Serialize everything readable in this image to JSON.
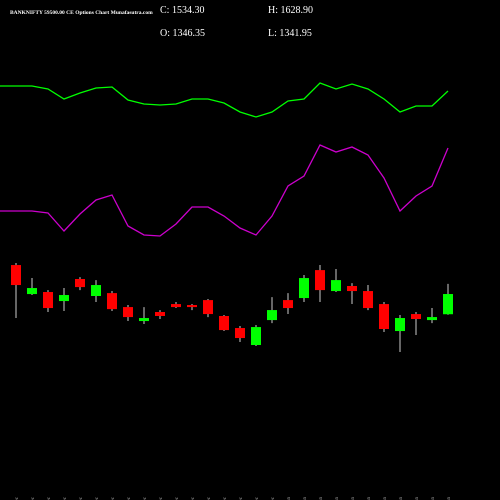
{
  "chart_data": {
    "type": "candlestick",
    "title": "BANKNIFTY 59500.00 CE Options Chart Munafasutra.com",
    "stats": [
      "C: 1534.30",
      "H: 1628.90",
      "O: 1346.35",
      "L: 1341.95"
    ],
    "up_color": "#00ff00",
    "down_color": "#ff0000",
    "categories": [
      "08 Dec",
      "09 Dec",
      "10 Dec",
      "11 Dec",
      "12 Dec",
      "15 Dec",
      "16 Dec",
      "17 Dec",
      "18 Dec",
      "19 Dec",
      "22 Dec",
      "23 Dec",
      "24 Dec",
      "26 Dec",
      "29 Dec",
      "30 Dec",
      "31 Dec",
      "01 Jan",
      "02 Jan",
      "05 Jan",
      "06 Jan",
      "07 Jan",
      "08 Jan",
      "09 Jan",
      "12 Jan",
      "13 Jan",
      "14 Jan",
      "16 Jan"
    ],
    "open": [
      1804,
      1534,
      1553,
      1469,
      1674,
      1516,
      1543,
      1413,
      1283,
      1367,
      1441,
      1432,
      1478,
      1330,
      1218,
      1060,
      1292,
      1478,
      1497,
      1757,
      1562,
      1609,
      1562,
      1441,
      1190,
      1348,
      1292,
      1346.35
    ],
    "close": [
      1618,
      1590,
      1404,
      1525,
      1599,
      1618,
      1394,
      1320,
      1311,
      1330,
      1413,
      1413,
      1348,
      1199,
      1125,
      1227,
      1385,
      1404,
      1683,
      1571,
      1664,
      1562,
      1404,
      1209,
      1311,
      1302,
      1320,
      1534.3
    ],
    "high": [
      1823,
      1683,
      1571,
      1590,
      1692,
      1664,
      1562,
      1432,
      1413,
      1385,
      1460,
      1441,
      1488,
      1339,
      1237,
      1246,
      1506,
      1543,
      1711,
      1804,
      1767,
      1636,
      1618,
      1460,
      1339,
      1367,
      1404,
      1628.9
    ],
    "low": [
      1311,
      1525,
      1367,
      1376,
      1571,
      1460,
      1376,
      1283,
      1255,
      1302,
      1404,
      1385,
      1320,
      1190,
      1088,
      1051,
      1264,
      1348,
      1460,
      1460,
      1553,
      1441,
      1385,
      1181,
      995,
      1153,
      1264,
      1341.95
    ],
    "indicators": [
      {
        "color": "#00ff00",
        "values": [
          114,
          114,
          111,
          101,
          107,
          112,
          113,
          100,
          96,
          95,
          96,
          101,
          101,
          97,
          88,
          83,
          88,
          99,
          101,
          117,
          111,
          116,
          111,
          101,
          88,
          94,
          94,
          109
        ]
      },
      {
        "color": "#cc00cc",
        "values": [
          89,
          89,
          87,
          69,
          86,
          100,
          105,
          74,
          65,
          64,
          76,
          93,
          93,
          84,
          72,
          65,
          84,
          114,
          124,
          155,
          148,
          153,
          145,
          122,
          89,
          104,
          114,
          152
        ]
      }
    ]
  }
}
